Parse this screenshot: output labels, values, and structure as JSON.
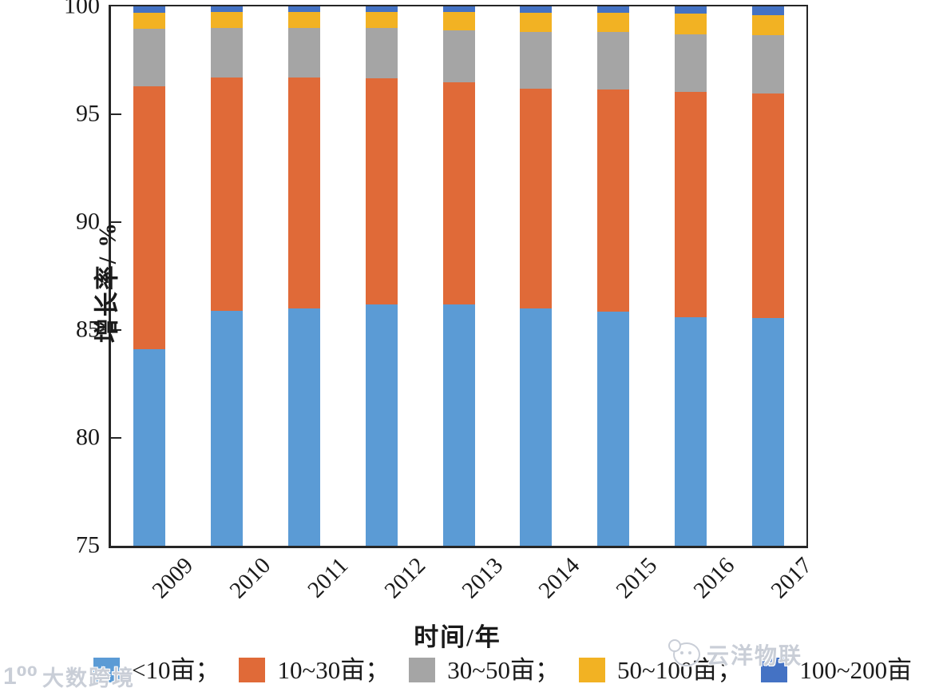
{
  "chart_data": {
    "type": "bar",
    "stacked": true,
    "orientation": "vertical",
    "xlabel": "时间/年",
    "ylabel": "增长率/ %",
    "ylim": [
      75,
      100
    ],
    "yticks": [
      "75",
      "80",
      "85",
      "90",
      "95",
      "100"
    ],
    "grid": false,
    "frame": "full-box",
    "categories": [
      "2009",
      "2010",
      "2011",
      "2012",
      "2013",
      "2014",
      "2015",
      "2016",
      "2017"
    ],
    "series": [
      {
        "name": "<10亩",
        "color": "#5B9BD5",
        "values": [
          84.1,
          85.9,
          86.0,
          86.2,
          86.2,
          86.0,
          85.85,
          85.6,
          85.55
        ]
      },
      {
        "name": "10~30亩",
        "color": "#E06A38",
        "values": [
          12.2,
          10.8,
          10.7,
          10.45,
          10.3,
          10.2,
          10.3,
          10.45,
          10.4
        ]
      },
      {
        "name": "30~50亩",
        "color": "#A5A5A5",
        "values": [
          2.65,
          2.3,
          2.3,
          2.35,
          2.4,
          2.6,
          2.65,
          2.65,
          2.7
        ]
      },
      {
        "name": "50~100亩",
        "color": "#F2B223",
        "values": [
          0.75,
          0.75,
          0.75,
          0.75,
          0.85,
          0.9,
          0.9,
          0.95,
          0.95
        ]
      },
      {
        "name": "100~200亩",
        "color": "#4472C4",
        "values": [
          0.3,
          0.25,
          0.25,
          0.25,
          0.25,
          0.3,
          0.3,
          0.35,
          0.4
        ]
      }
    ],
    "legend_position": "bottom",
    "legend_labels": [
      "<10亩；",
      "10~30亩；",
      "30~50亩；",
      "50~100亩；",
      "100~200亩"
    ]
  },
  "watermarks": {
    "left_logo": "1⁰⁰",
    "left_text": "大数跨境",
    "right_text": "云洋物联"
  }
}
